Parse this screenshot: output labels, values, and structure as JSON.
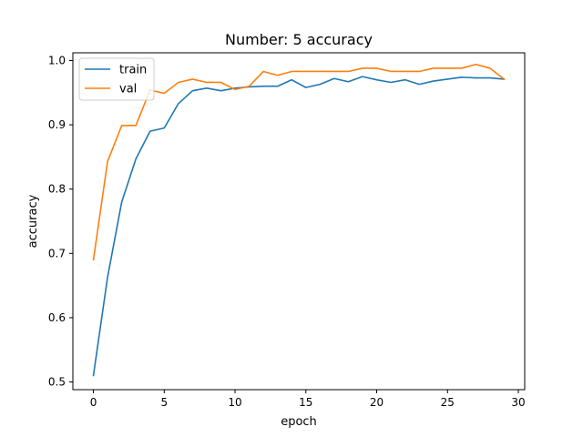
{
  "chart_data": {
    "type": "line",
    "title": "Number: 5 accuracy",
    "xlabel": "epoch",
    "ylabel": "accuracy",
    "xlim": [
      -1.45,
      30.45
    ],
    "ylim": [
      0.488,
      1.012
    ],
    "x_ticks": [
      0,
      5,
      10,
      15,
      20,
      25,
      30
    ],
    "y_ticks": [
      0.5,
      0.6,
      0.7,
      0.8,
      0.9,
      1.0
    ],
    "grid": false,
    "legend_position": "top-left",
    "x": [
      0,
      1,
      2,
      3,
      4,
      5,
      6,
      7,
      8,
      9,
      10,
      11,
      12,
      13,
      14,
      15,
      16,
      17,
      18,
      19,
      20,
      21,
      22,
      23,
      24,
      25,
      26,
      27,
      28,
      29
    ],
    "series": [
      {
        "name": "train",
        "color": "#1f77b4",
        "values": [
          0.51,
          0.663,
          0.78,
          0.847,
          0.89,
          0.895,
          0.933,
          0.953,
          0.957,
          0.953,
          0.957,
          0.959,
          0.96,
          0.96,
          0.97,
          0.958,
          0.963,
          0.972,
          0.967,
          0.975,
          0.97,
          0.966,
          0.97,
          0.963,
          0.968,
          0.971,
          0.974,
          0.973,
          0.973,
          0.971
        ]
      },
      {
        "name": "val",
        "color": "#ff7f0e",
        "values": [
          0.69,
          0.843,
          0.899,
          0.899,
          0.954,
          0.949,
          0.966,
          0.971,
          0.966,
          0.966,
          0.955,
          0.96,
          0.983,
          0.977,
          0.983,
          0.983,
          0.983,
          0.983,
          0.983,
          0.988,
          0.988,
          0.983,
          0.983,
          0.983,
          0.988,
          0.988,
          0.988,
          0.994,
          0.988,
          0.971
        ]
      }
    ]
  }
}
